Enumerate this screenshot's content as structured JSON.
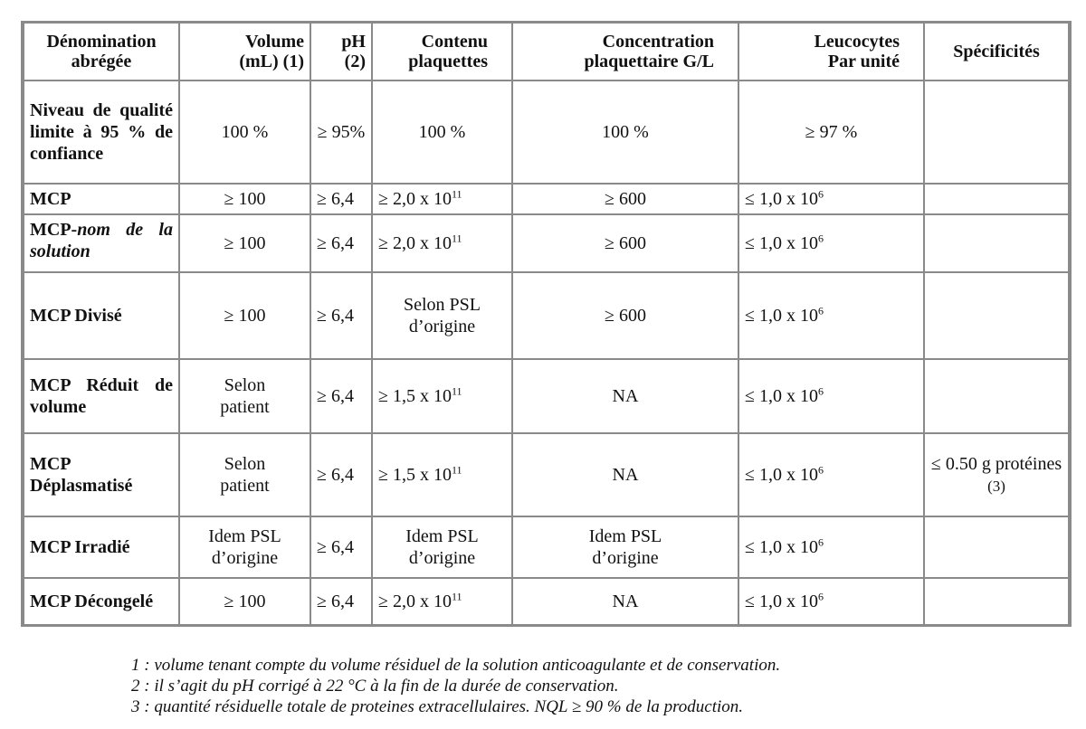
{
  "table": {
    "headers": [
      [
        "Dénomination",
        "abrégée"
      ],
      [
        "Volume",
        "(mL) (1)"
      ],
      [
        "pH",
        "(2)"
      ],
      [
        "Contenu",
        "plaquettes"
      ],
      [
        "Concentration",
        "plaquettaire G/L"
      ],
      [
        "Leucocytes",
        "Par unité"
      ],
      [
        "Spécificités"
      ]
    ],
    "quality": {
      "name": "Niveau de qualité limite à 95 % de confiance",
      "volume": "100 %",
      "ph": "≥ 95%",
      "contenu": "100 %",
      "conc": "100 %",
      "leuco": "≥ 97 %",
      "spec": ""
    },
    "rows": [
      {
        "name": "MCP",
        "volume": "≥ 100",
        "ph": "≥ 6,4",
        "contenu_base": "≥ 2,0 x 10",
        "contenu_exp": "11",
        "conc": "≥ 600",
        "leuco_base": "≤ 1,0 x 10",
        "leuco_exp": "6",
        "spec": ""
      },
      {
        "name": "MCP-",
        "name_italic": "nom de la solution",
        "volume": "≥ 100",
        "ph": "≥ 6,4",
        "contenu_base": "≥ 2,0 x 10",
        "contenu_exp": "11",
        "conc": "≥ 600",
        "leuco_base": "≤ 1,0 x 10",
        "leuco_exp": "6",
        "spec": ""
      },
      {
        "name": "MCP Divisé",
        "volume": "≥ 100",
        "ph": "≥ 6,4",
        "contenu_l1": "Selon PSL",
        "contenu_l2": "d’origine",
        "conc": "≥ 600",
        "leuco_base": "≤ 1,0 x 10",
        "leuco_exp": "6",
        "spec": ""
      },
      {
        "name": "MCP Réduit de volume",
        "volume_l1": "Selon",
        "volume_l2": "patient",
        "ph": "≥ 6,4",
        "contenu_base": "≥ 1,5 x 10",
        "contenu_exp": "11",
        "conc": "NA",
        "leuco_base": "≤ 1,0 x 10",
        "leuco_exp": "6",
        "spec": ""
      },
      {
        "name_l1": "MCP",
        "name_l2": "Déplasmatisé",
        "volume_l1": "Selon",
        "volume_l2": "patient",
        "ph": "≥ 6,4",
        "contenu_base": "≥ 1,5 x 10",
        "contenu_exp": "11",
        "conc": "NA",
        "leuco_base": "≤ 1,0 x 10",
        "leuco_exp": "6",
        "spec_l1": "≤ 0.50 g protéines",
        "spec_l2": "(3)"
      },
      {
        "name": "MCP Irradié",
        "volume_l1": "Idem PSL",
        "volume_l2": "d’origine",
        "ph": "≥ 6,4",
        "contenu_l1": "Idem PSL",
        "contenu_l2": "d’origine",
        "conc_l1": "Idem PSL",
        "conc_l2": "d’origine",
        "leuco_base": "≤ 1,0 x 10",
        "leuco_exp": "6",
        "spec": ""
      },
      {
        "name": "MCP Décongelé",
        "volume": "≥ 100",
        "ph": "≥ 6,4",
        "contenu_base": "≥ 2,0 x 10",
        "contenu_exp": "11",
        "conc": "NA",
        "leuco_base": "≤ 1,0 x 10",
        "leuco_exp": "6",
        "spec": ""
      }
    ]
  },
  "footnotes": [
    "1 : volume tenant compte du volume résiduel de la solution anticoagulante et de conservation.",
    "2 : il s’agit du pH corrigé à 22 °C à la fin de la durée de conservation.",
    "3 : quantité résiduelle totale de proteines extracellulaires. NQL ≥ 90 % de la production."
  ]
}
